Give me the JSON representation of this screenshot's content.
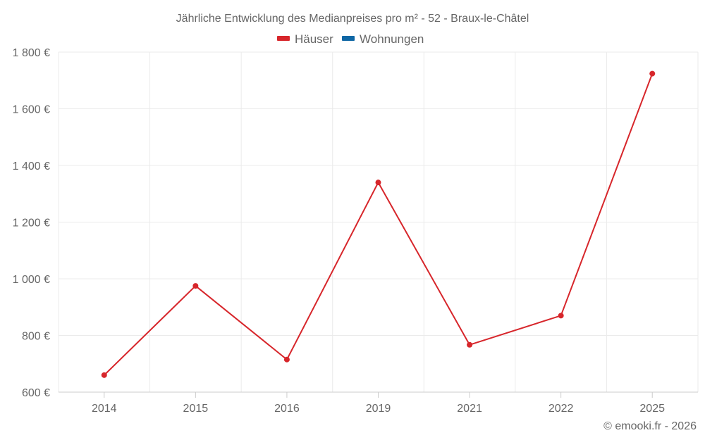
{
  "chart_data": {
    "type": "line",
    "title": "Jährliche Entwicklung des Medianpreises pro m² - 52 - Braux-le-Châtel",
    "categories": [
      "2014",
      "2015",
      "2016",
      "2019",
      "2021",
      "2022",
      "2025"
    ],
    "series": [
      {
        "name": "Häuser",
        "color": "#d7262b",
        "values": [
          660,
          975,
          715,
          1340,
          767,
          870,
          1724
        ]
      },
      {
        "name": "Wohnungen",
        "color": "#0f67a5",
        "values": [
          null,
          null,
          null,
          null,
          null,
          null,
          null
        ]
      }
    ],
    "ylim": [
      600,
      1800
    ],
    "yticks": [
      600,
      800,
      1000,
      1200,
      1400,
      1600,
      1800
    ],
    "ytick_labels": [
      "600 €",
      "800 €",
      "1 000 €",
      "1 200 €",
      "1 400 €",
      "1 600 €",
      "1 800 €"
    ],
    "xlabel": "",
    "ylabel": "",
    "grid": true,
    "legend_position": "top-center",
    "credit": "© emooki.fr - 2026"
  }
}
